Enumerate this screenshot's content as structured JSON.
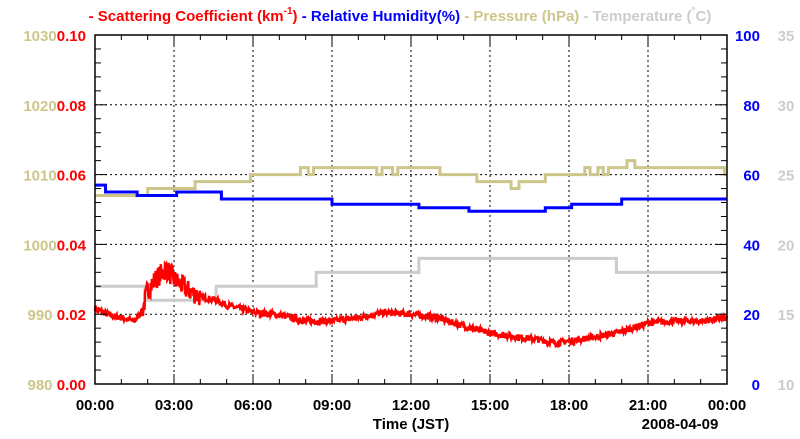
{
  "chart_data": {
    "type": "line",
    "legend": [
      {
        "dash": "-",
        "label": "Scattering Coefficient (km",
        "sup": "-1",
        "close": ")",
        "color": "#ff0000"
      },
      {
        "dash": "-",
        "label": "Relative Humidity(%)",
        "color": "#0000ff"
      },
      {
        "dash": "-",
        "label": "Pressure (hPa)",
        "color": "#cdc68a"
      },
      {
        "dash": "-",
        "label": "Temperature (",
        "sup": "°",
        "close": "C)",
        "color": "#cccccc"
      }
    ],
    "legend_placement": "top",
    "xlabel": "Time (JST)",
    "date_label": "2008-04-09",
    "xlim": [
      0,
      24
    ],
    "x_ticks": [
      0,
      3,
      6,
      9,
      12,
      15,
      18,
      21,
      24
    ],
    "x_tick_labels": [
      "00:00",
      "03:00",
      "06:00",
      "09:00",
      "12:00",
      "15:00",
      "18:00",
      "21:00",
      "00:00"
    ],
    "grid": true,
    "axes": {
      "scattering": {
        "side": "left-inner",
        "range": [
          0,
          0.1
        ],
        "ticks": [
          "0.00",
          "0.02",
          "0.04",
          "0.06",
          "0.08",
          "0.10"
        ],
        "color": "#ff0000"
      },
      "pressure": {
        "side": "left-outer",
        "range": [
          980,
          1030
        ],
        "ticks": [
          "980",
          "990",
          "1000",
          "1010",
          "1020",
          "1030"
        ],
        "color": "#cdc68a"
      },
      "humidity": {
        "side": "right-inner",
        "range": [
          0,
          100
        ],
        "ticks": [
          "0",
          "20",
          "40",
          "60",
          "80",
          "100"
        ],
        "color": "#0000ff"
      },
      "temperature": {
        "side": "right-outer",
        "range": [
          10,
          35
        ],
        "ticks": [
          "10",
          "15",
          "20",
          "25",
          "30",
          "35"
        ],
        "color": "#cccccc"
      }
    },
    "series": [
      {
        "name": "Scattering Coefficient",
        "axis": "scattering",
        "color": "#ff0000",
        "style": "noisy",
        "points": [
          [
            0,
            0.0218
          ],
          [
            0.5,
            0.0198
          ],
          [
            1,
            0.019
          ],
          [
            1.5,
            0.018
          ],
          [
            1.8,
            0.021
          ],
          [
            2,
            0.027
          ],
          [
            2.3,
            0.03
          ],
          [
            2.7,
            0.033
          ],
          [
            3,
            0.03
          ],
          [
            3.5,
            0.027
          ],
          [
            4,
            0.025
          ],
          [
            4.6,
            0.024
          ],
          [
            5,
            0.0226
          ],
          [
            6,
            0.0206
          ],
          [
            7,
            0.0198
          ],
          [
            8,
            0.018
          ],
          [
            9,
            0.018
          ],
          [
            10,
            0.019
          ],
          [
            11,
            0.0205
          ],
          [
            12,
            0.02
          ],
          [
            13,
            0.019
          ],
          [
            14,
            0.0166
          ],
          [
            15,
            0.0146
          ],
          [
            16,
            0.0135
          ],
          [
            17,
            0.0126
          ],
          [
            17.5,
            0.0117
          ],
          [
            18,
            0.0123
          ],
          [
            19,
            0.0135
          ],
          [
            20,
            0.015
          ],
          [
            21,
            0.0175
          ],
          [
            22,
            0.018
          ],
          [
            23,
            0.018
          ],
          [
            24,
            0.019
          ]
        ]
      },
      {
        "name": "Relative Humidity",
        "axis": "humidity",
        "color": "#0000ff",
        "style": "step",
        "points": [
          [
            0,
            57
          ],
          [
            0.4,
            55
          ],
          [
            1.6,
            54
          ],
          [
            3.1,
            55
          ],
          [
            4.8,
            53
          ],
          [
            9.0,
            51.5
          ],
          [
            12.3,
            50.5
          ],
          [
            14.2,
            49.5
          ],
          [
            17.1,
            50.5
          ],
          [
            18.1,
            51.5
          ],
          [
            20.0,
            53
          ],
          [
            24,
            53
          ]
        ]
      },
      {
        "name": "Pressure",
        "axis": "pressure",
        "color": "#cdc68a",
        "style": "step",
        "points": [
          [
            0,
            1007
          ],
          [
            2.0,
            1008
          ],
          [
            3.8,
            1009
          ],
          [
            5.9,
            1010
          ],
          [
            7.8,
            1011
          ],
          [
            8.1,
            1010
          ],
          [
            8.3,
            1011
          ],
          [
            10.7,
            1010
          ],
          [
            10.9,
            1011
          ],
          [
            11.3,
            1010
          ],
          [
            11.5,
            1011
          ],
          [
            13.1,
            1010
          ],
          [
            14.5,
            1009
          ],
          [
            15.8,
            1008
          ],
          [
            16.1,
            1009
          ],
          [
            17.1,
            1010
          ],
          [
            18.6,
            1011
          ],
          [
            18.8,
            1010
          ],
          [
            19.1,
            1011
          ],
          [
            19.3,
            1010
          ],
          [
            19.5,
            1011
          ],
          [
            20.2,
            1012
          ],
          [
            20.5,
            1011
          ],
          [
            23.9,
            1010
          ],
          [
            24,
            1010
          ]
        ]
      },
      {
        "name": "Temperature",
        "axis": "temperature",
        "color": "#cccccc",
        "style": "step",
        "points": [
          [
            0,
            17
          ],
          [
            1.9,
            16
          ],
          [
            4.6,
            17
          ],
          [
            8.4,
            18
          ],
          [
            12.3,
            19
          ],
          [
            19.8,
            18
          ],
          [
            24,
            18
          ]
        ]
      }
    ]
  }
}
